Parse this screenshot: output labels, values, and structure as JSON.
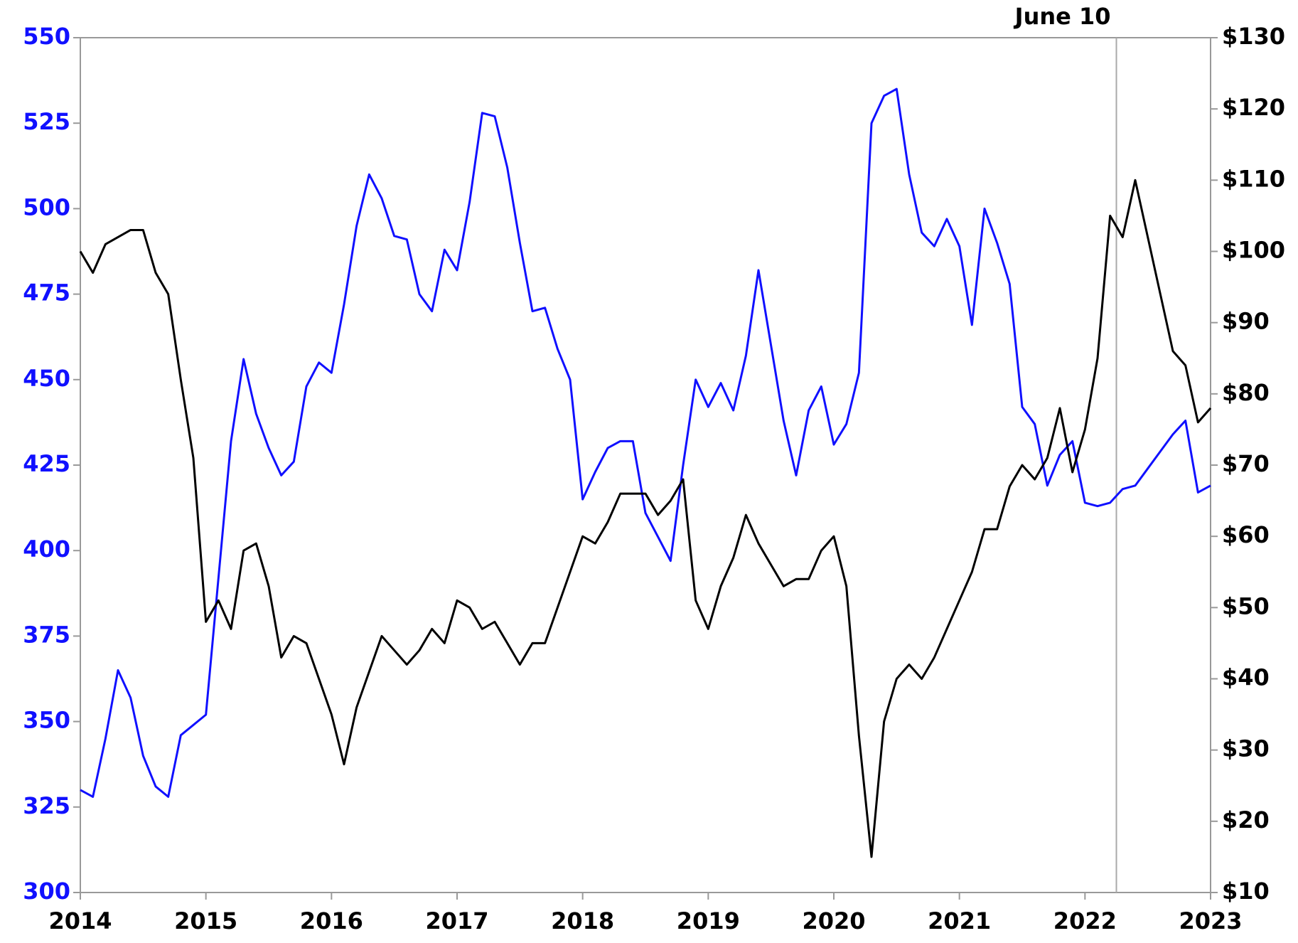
{
  "chart_data": {
    "type": "line",
    "x": [
      2014.0,
      2014.1,
      2014.2,
      2014.3,
      2014.4,
      2014.5,
      2014.6,
      2014.7,
      2014.8,
      2014.9,
      2015.0,
      2015.1,
      2015.2,
      2015.3,
      2015.4,
      2015.5,
      2015.6,
      2015.7,
      2015.8,
      2015.9,
      2016.0,
      2016.1,
      2016.2,
      2016.3,
      2016.4,
      2016.5,
      2016.6,
      2016.7,
      2016.8,
      2016.9,
      2017.0,
      2017.1,
      2017.2,
      2017.3,
      2017.4,
      2017.5,
      2017.6,
      2017.7,
      2017.8,
      2017.9,
      2018.0,
      2018.1,
      2018.2,
      2018.3,
      2018.4,
      2018.5,
      2018.6,
      2018.7,
      2018.8,
      2018.9,
      2019.0,
      2019.1,
      2019.2,
      2019.3,
      2019.4,
      2019.5,
      2019.6,
      2019.7,
      2019.8,
      2019.9,
      2020.0,
      2020.1,
      2020.2,
      2020.3,
      2020.4,
      2020.5,
      2020.6,
      2020.7,
      2020.8,
      2020.9,
      2021.0,
      2021.1,
      2021.2,
      2021.3,
      2021.4,
      2021.5,
      2021.6,
      2021.7,
      2021.8,
      2021.9,
      2022.0,
      2022.1,
      2022.2,
      2022.3,
      2022.4,
      2022.5,
      2022.6,
      2022.7,
      2022.8,
      2022.9,
      2023.0
    ],
    "series": [
      {
        "color": "#1010ff",
        "axis": "y",
        "values": [
          330,
          328,
          345,
          365,
          357,
          340,
          331,
          328,
          346,
          349,
          352,
          392,
          432,
          456,
          440,
          430,
          422,
          426,
          448,
          455,
          452,
          472,
          495,
          510,
          503,
          492,
          491,
          475,
          470,
          488,
          482,
          502,
          528,
          527,
          512,
          490,
          470,
          471,
          459,
          450,
          415,
          423,
          430,
          432,
          432,
          411,
          404,
          397,
          425,
          450,
          442,
          449,
          441,
          457,
          482,
          460,
          438,
          422,
          441,
          448,
          431,
          437,
          452,
          525,
          533,
          535,
          510,
          493,
          489,
          497,
          489,
          466,
          500,
          490,
          478,
          442,
          437,
          419,
          428,
          432,
          414,
          413,
          414,
          418,
          419,
          424,
          429,
          434,
          438,
          417,
          419
        ]
      },
      {
        "color": "#000000",
        "axis": "y2",
        "values": [
          100,
          97,
          101,
          102,
          103,
          103,
          97,
          94,
          82,
          71,
          48,
          51,
          47,
          58,
          59,
          53,
          43,
          46,
          45,
          40,
          35,
          28,
          36,
          41,
          46,
          44,
          42,
          44,
          47,
          45,
          51,
          50,
          47,
          48,
          45,
          42,
          45,
          45,
          50,
          55,
          60,
          59,
          62,
          66,
          66,
          66,
          63,
          65,
          68,
          51,
          47,
          53,
          57,
          63,
          59,
          56,
          53,
          54,
          54,
          58,
          60,
          53,
          32,
          15,
          34,
          40,
          42,
          40,
          43,
          47,
          51,
          55,
          61,
          61,
          67,
          70,
          68,
          71,
          78,
          69,
          75,
          85,
          105,
          102,
          110,
          102,
          94,
          86,
          84,
          76,
          78
        ]
      }
    ],
    "xlim": [
      2014,
      2023
    ],
    "xticks": [
      2014,
      2015,
      2016,
      2017,
      2018,
      2019,
      2020,
      2021,
      2022,
      2023
    ],
    "ylim": [
      300,
      550
    ],
    "yticks": [
      300,
      325,
      350,
      375,
      400,
      425,
      450,
      475,
      500,
      525,
      550
    ],
    "y2lim": [
      10,
      130
    ],
    "y2ticks": [
      {
        "value": 10,
        "label": "$10"
      },
      {
        "value": 20,
        "label": "$20"
      },
      {
        "value": 30,
        "label": "$30"
      },
      {
        "value": 40,
        "label": "$40"
      },
      {
        "value": 50,
        "label": "$50"
      },
      {
        "value": 60,
        "label": "$60"
      },
      {
        "value": 70,
        "label": "$70"
      },
      {
        "value": 80,
        "label": "$80"
      },
      {
        "value": 90,
        "label": "$90"
      },
      {
        "value": 100,
        "label": "$100"
      },
      {
        "value": 110,
        "label": "$110"
      },
      {
        "value": 120,
        "label": "$120"
      },
      {
        "value": 130,
        "label": "$130"
      }
    ],
    "marker": {
      "x": 2022.25,
      "label": "June 10"
    },
    "grid": false
  }
}
